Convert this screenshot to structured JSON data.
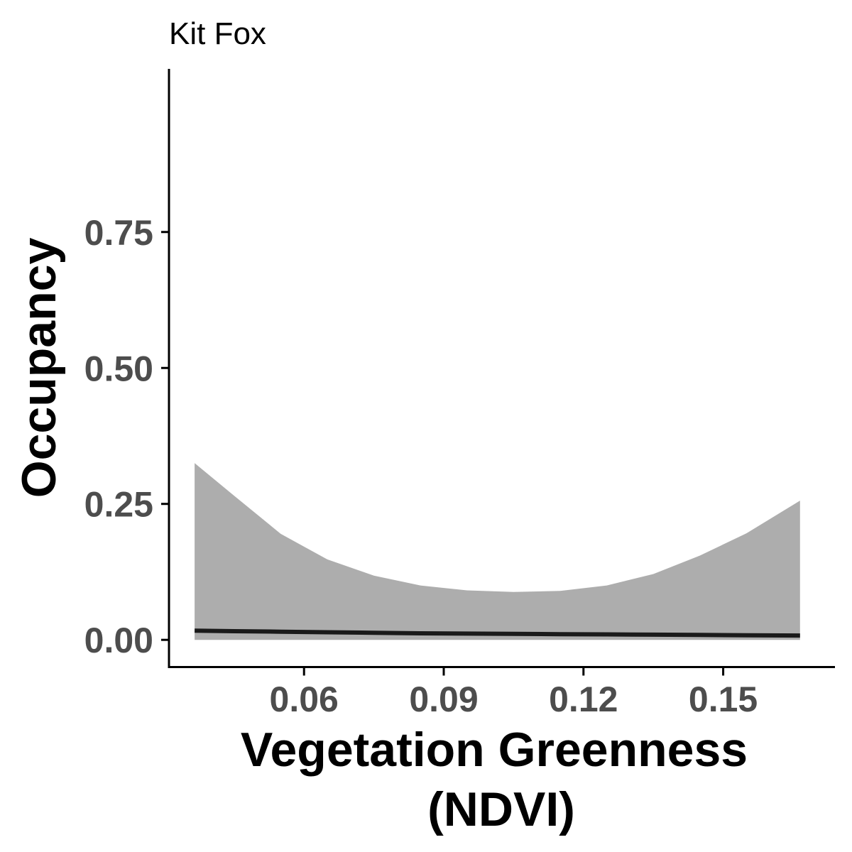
{
  "chart_data": {
    "type": "line",
    "title": "Kit Fox",
    "xlabel_lines": [
      "Vegetation Greenness",
      "(NDVI)"
    ],
    "ylabel": "Occupancy",
    "xlim": [
      0.031,
      0.174
    ],
    "ylim": [
      -0.05,
      1.05
    ],
    "x_ticks": [
      0.06,
      0.09,
      0.12,
      0.15
    ],
    "x_tick_labels": [
      "0.06",
      "0.09",
      "0.12",
      "0.15"
    ],
    "y_ticks": [
      0.0,
      0.25,
      0.5,
      0.75
    ],
    "y_tick_labels": [
      "0.00",
      "0.25",
      "0.50",
      "0.75"
    ],
    "grid": false,
    "legend": "none",
    "colors": {
      "line": "#1a1a1a",
      "ribbon": "#adadad",
      "axis": "#000000",
      "tick_label": "#4d4d4d"
    },
    "series": [
      {
        "x": [
          0.0365,
          0.045,
          0.055,
          0.065,
          0.075,
          0.085,
          0.095,
          0.105,
          0.115,
          0.125,
          0.135,
          0.145,
          0.155,
          0.1665
        ],
        "y": [
          0.017,
          0.016,
          0.015,
          0.014,
          0.013,
          0.012,
          0.0115,
          0.011,
          0.0105,
          0.01,
          0.0095,
          0.009,
          0.0085,
          0.008
        ],
        "ymin": [
          0.0,
          0.0,
          0.0,
          0.0,
          0.0,
          0.0,
          0.0,
          0.0,
          0.0,
          0.0,
          0.0,
          0.0,
          0.0,
          0.0
        ],
        "ymax": [
          0.325,
          0.265,
          0.195,
          0.148,
          0.118,
          0.1,
          0.091,
          0.088,
          0.09,
          0.1,
          0.121,
          0.155,
          0.196,
          0.256
        ]
      }
    ]
  }
}
